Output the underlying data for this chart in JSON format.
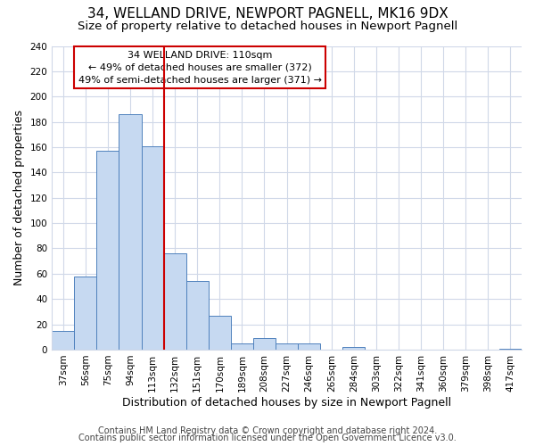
{
  "title": "34, WELLAND DRIVE, NEWPORT PAGNELL, MK16 9DX",
  "subtitle": "Size of property relative to detached houses in Newport Pagnell",
  "xlabel": "Distribution of detached houses by size in Newport Pagnell",
  "ylabel": "Number of detached properties",
  "bar_labels": [
    "37sqm",
    "56sqm",
    "75sqm",
    "94sqm",
    "113sqm",
    "132sqm",
    "151sqm",
    "170sqm",
    "189sqm",
    "208sqm",
    "227sqm",
    "246sqm",
    "265sqm",
    "284sqm",
    "303sqm",
    "322sqm",
    "341sqm",
    "360sqm",
    "379sqm",
    "398sqm",
    "417sqm"
  ],
  "bar_values": [
    15,
    58,
    157,
    186,
    161,
    76,
    54,
    27,
    5,
    9,
    5,
    5,
    0,
    2,
    0,
    0,
    0,
    0,
    0,
    0,
    1
  ],
  "bar_color": "#c6d9f1",
  "bar_edge_color": "#4f81bd",
  "vline_x": 4.5,
  "vline_color": "#cc0000",
  "annotation_title": "34 WELLAND DRIVE: 110sqm",
  "annotation_line1": "← 49% of detached houses are smaller (372)",
  "annotation_line2": "49% of semi-detached houses are larger (371) →",
  "annotation_box_color": "#ffffff",
  "annotation_box_edge": "#cc0000",
  "ylim": [
    0,
    240
  ],
  "yticks": [
    0,
    20,
    40,
    60,
    80,
    100,
    120,
    140,
    160,
    180,
    200,
    220,
    240
  ],
  "footer1": "Contains HM Land Registry data © Crown copyright and database right 2024.",
  "footer2": "Contains public sector information licensed under the Open Government Licence v3.0.",
  "background_color": "#ffffff",
  "grid_color": "#d0d8e8",
  "title_fontsize": 11,
  "subtitle_fontsize": 9.5,
  "axis_label_fontsize": 9,
  "tick_fontsize": 7.5,
  "annotation_fontsize": 8,
  "footer_fontsize": 7
}
